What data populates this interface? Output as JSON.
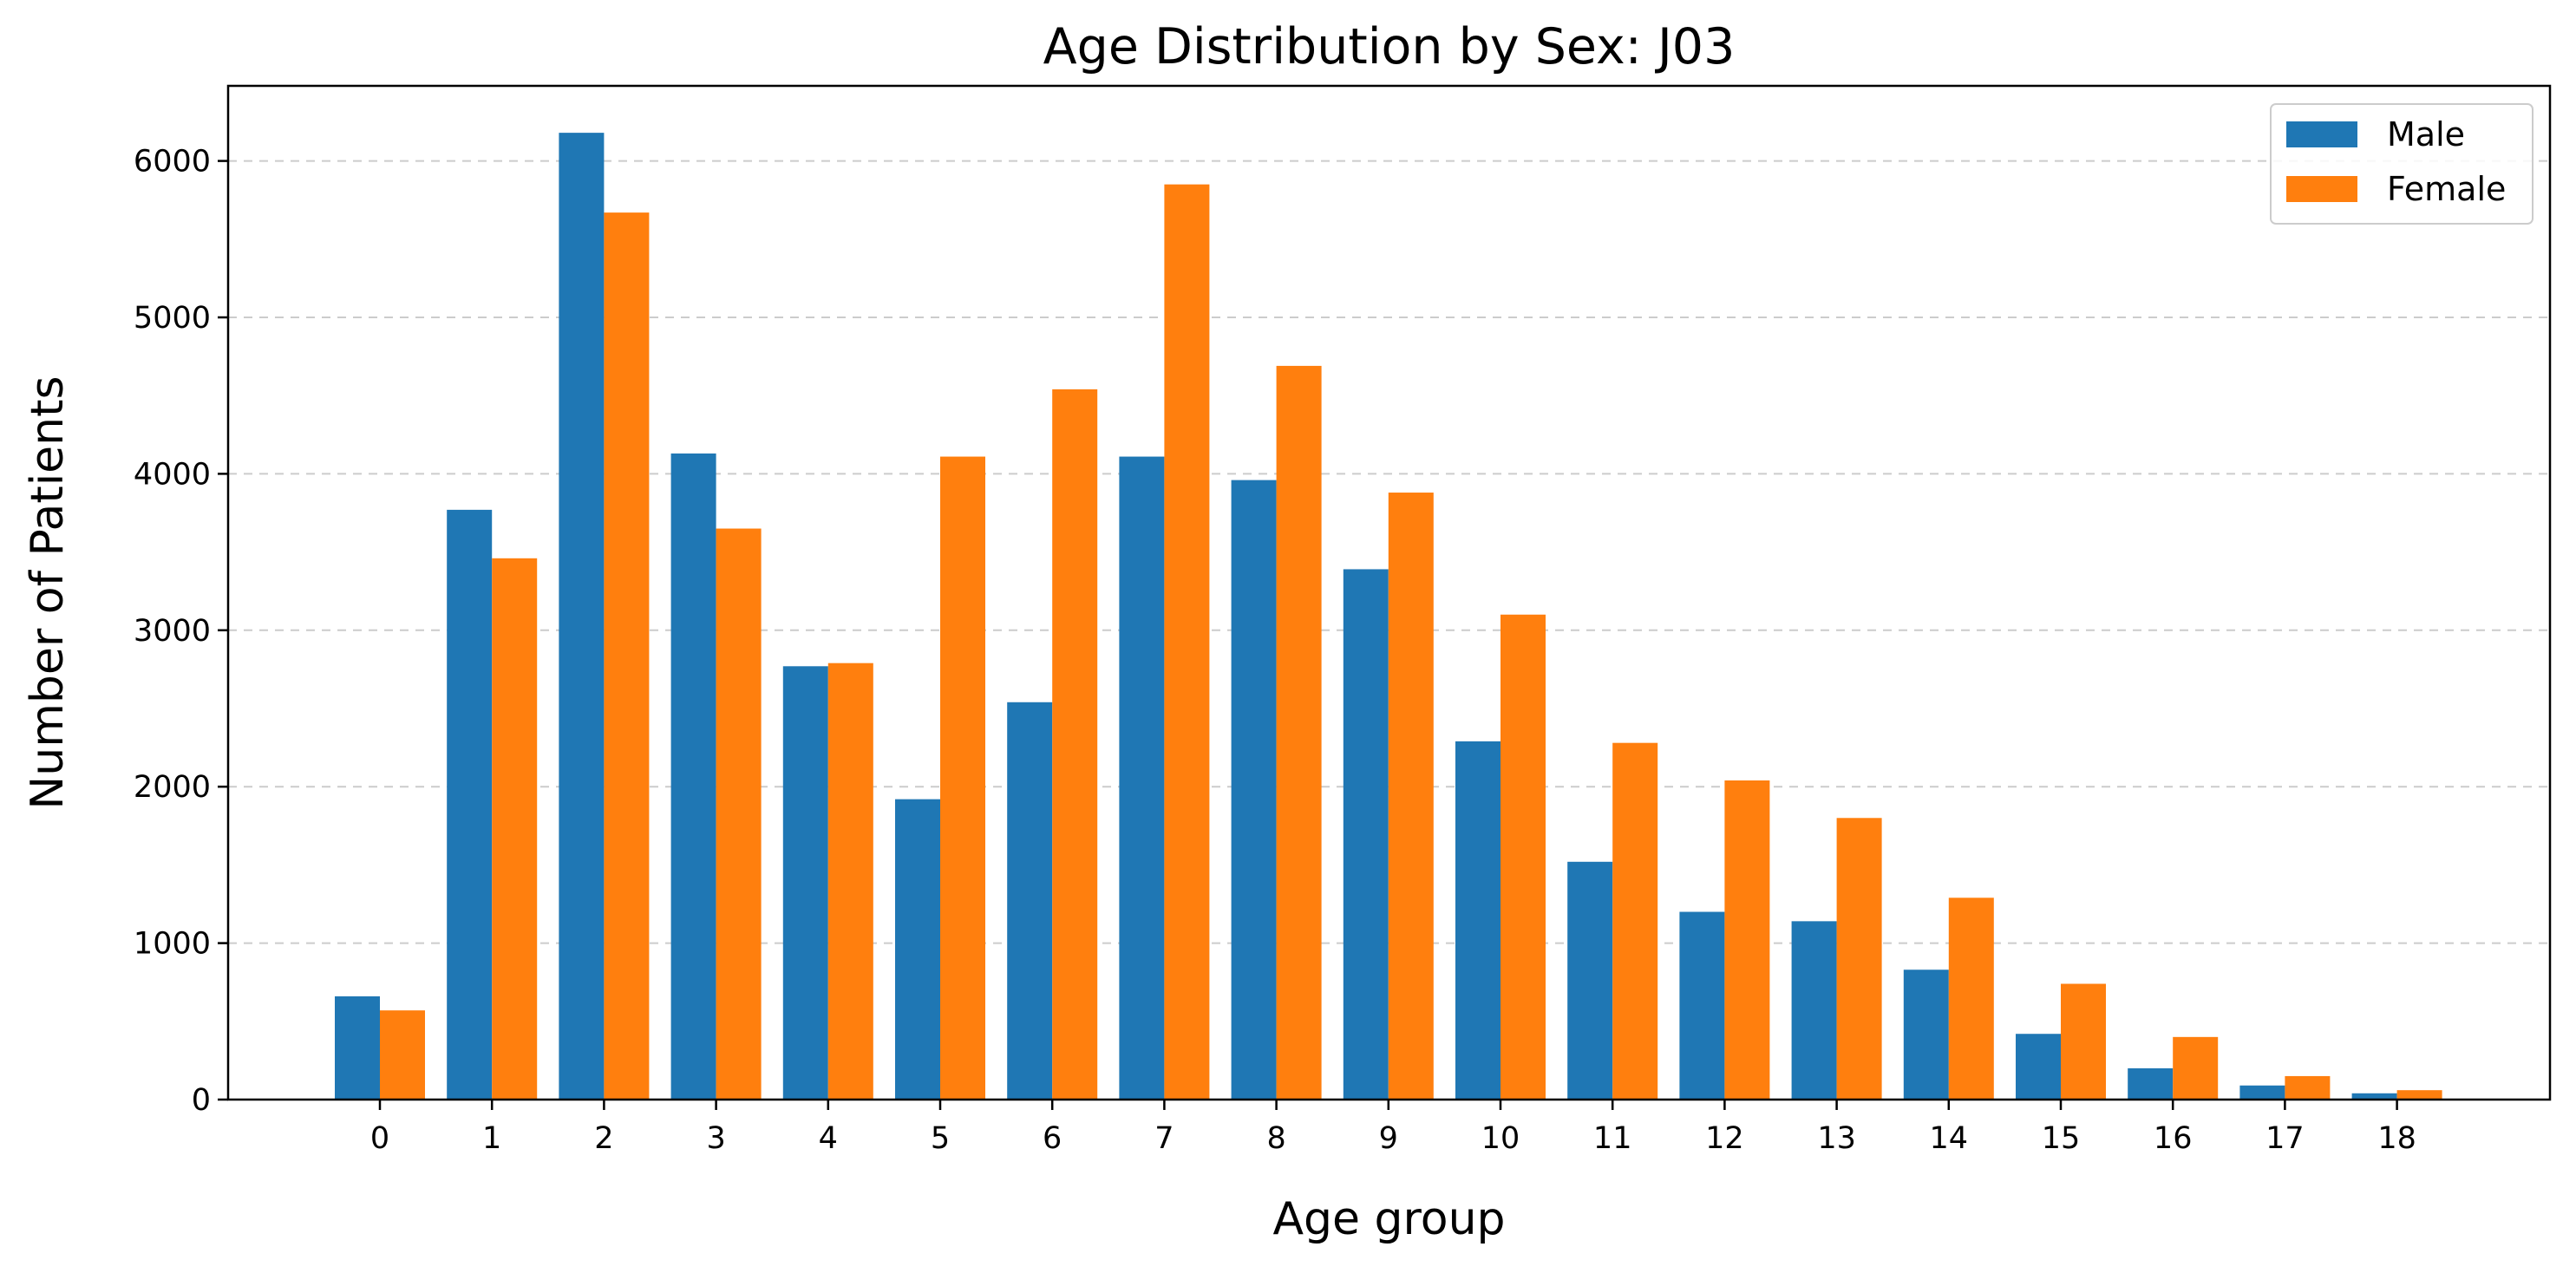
{
  "chart_data": {
    "type": "bar",
    "title": "Age Distribution by Sex: J03",
    "xlabel": "Age group",
    "ylabel": "Number of Patients",
    "categories": [
      "0",
      "1",
      "2",
      "3",
      "4",
      "5",
      "6",
      "7",
      "8",
      "9",
      "10",
      "11",
      "12",
      "13",
      "14",
      "15",
      "16",
      "17",
      "18"
    ],
    "series": [
      {
        "name": "Male",
        "color": "#1f77b4",
        "values": [
          660,
          3770,
          6180,
          4130,
          2770,
          1920,
          2540,
          4110,
          3960,
          3390,
          2290,
          1520,
          1200,
          1140,
          830,
          420,
          200,
          90,
          40
        ]
      },
      {
        "name": "Female",
        "color": "#ff7f0e",
        "values": [
          570,
          3460,
          5670,
          3650,
          2790,
          4110,
          4540,
          5850,
          4690,
          3880,
          3100,
          2280,
          2040,
          1800,
          1290,
          740,
          400,
          150,
          60
        ]
      }
    ],
    "yticks": [
      "0",
      "1000",
      "2000",
      "3000",
      "4000",
      "5000",
      "6000"
    ],
    "ylim": [
      0,
      6480
    ],
    "grid": "y-dashed",
    "legend_position": "top-right"
  }
}
